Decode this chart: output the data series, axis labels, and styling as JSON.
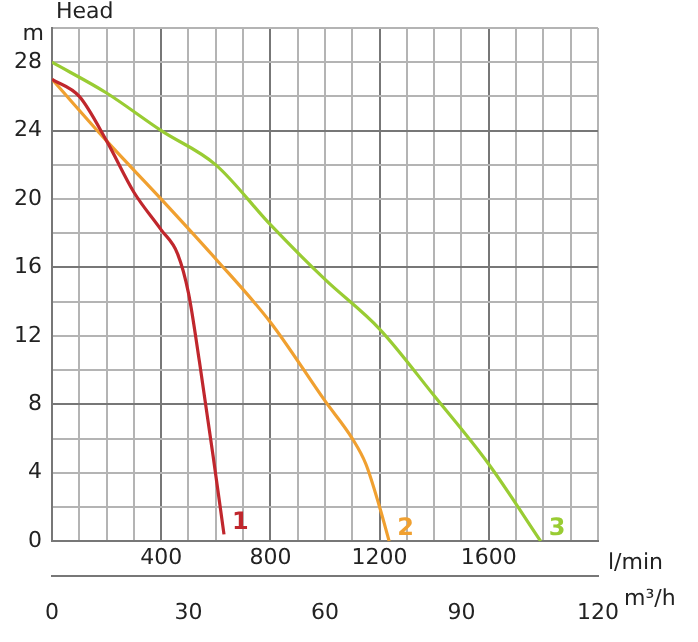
{
  "chart_data": {
    "type": "line",
    "ylabel": "Head",
    "xlabel": "l/min",
    "x2label": "m³/h",
    "annotations": [
      "m"
    ],
    "xlim": [
      0,
      2000
    ],
    "ylim": [
      0,
      30
    ],
    "x2lim": [
      0,
      120
    ],
    "x2ticks": [
      0,
      30,
      60,
      90,
      120
    ],
    "xticks": [
      {
        "value": 0,
        "label": null
      },
      {
        "value": 100,
        "label": null
      },
      {
        "value": 200,
        "label": null
      },
      {
        "value": 300,
        "label": null
      },
      400,
      {
        "value": 500,
        "label": null
      },
      {
        "value": 600,
        "label": null
      },
      {
        "value": 700,
        "label": null
      },
      800,
      {
        "value": 900,
        "label": null
      },
      {
        "value": 1000,
        "label": null
      },
      {
        "value": 1100,
        "label": null
      },
      1200,
      {
        "value": 1300,
        "label": null
      },
      {
        "value": 1400,
        "label": null
      },
      {
        "value": 1500,
        "label": null
      },
      1600,
      {
        "value": 1700,
        "label": null
      },
      {
        "value": 1800,
        "label": null
      },
      {
        "value": 1900,
        "label": null
      },
      {
        "value": 2000,
        "label": null
      }
    ],
    "yticks": [
      0,
      {
        "value": 2,
        "label": null
      },
      4,
      {
        "value": 6,
        "label": null
      },
      8,
      {
        "value": 10,
        "label": null
      },
      12,
      {
        "value": 14,
        "label": null
      },
      16,
      {
        "value": 18,
        "label": null
      },
      20,
      {
        "value": 22,
        "label": null
      },
      24,
      {
        "value": 26,
        "label": null
      },
      28,
      {
        "value": 30,
        "label": null
      }
    ],
    "grid": true,
    "legend": false,
    "marker": "none",
    "line_style": "solid",
    "series": [
      {
        "name": "1",
        "color": "#c0272d",
        "x": [
          0,
          100,
          200,
          300,
          400,
          460,
          500,
          540,
          590,
          630
        ],
        "values": [
          27,
          26,
          23.4,
          20.4,
          18.2,
          16.8,
          14.5,
          10.5,
          5,
          0.4
        ]
      },
      {
        "name": "2",
        "color": "#f0a030",
        "x": [
          0,
          200,
          400,
          600,
          800,
          1000,
          1100,
          1150,
          1200,
          1235
        ],
        "values": [
          27,
          23.4,
          20,
          16.5,
          12.8,
          8.2,
          6,
          4.5,
          2,
          0
        ]
      },
      {
        "name": "3",
        "color": "#99cc33",
        "x": [
          0,
          200,
          400,
          600,
          800,
          1000,
          1200,
          1400,
          1600,
          1790
        ],
        "values": [
          28,
          26.2,
          24,
          22,
          18.5,
          15.3,
          12.4,
          8.5,
          4.5,
          0
        ]
      }
    ]
  }
}
